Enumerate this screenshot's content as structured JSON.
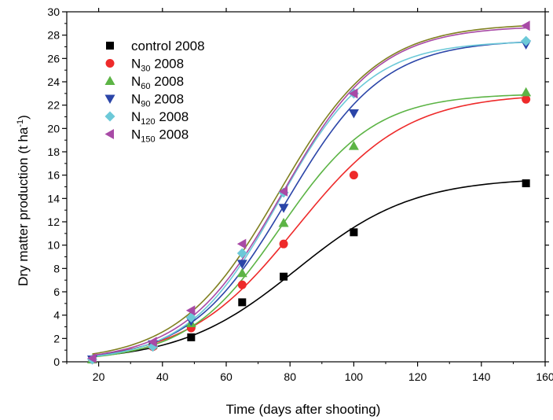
{
  "chart_data": {
    "type": "scatter",
    "xlabel": "Time (days after shooting)",
    "ylabel": "Dry matter production (t ha-1)",
    "ylabel_parts": {
      "main": "Dry matter production (t ha",
      "sup": "-1",
      "close": ")"
    },
    "xlim": [
      10,
      160
    ],
    "ylim": [
      0,
      30
    ],
    "x_ticks": [
      20,
      40,
      60,
      80,
      100,
      120,
      140,
      160
    ],
    "y_ticks": [
      0,
      2,
      4,
      6,
      8,
      10,
      12,
      14,
      16,
      18,
      20,
      22,
      24,
      26,
      28,
      30
    ],
    "grid": false,
    "legend_position": "top-left",
    "x": [
      18,
      37,
      49,
      65,
      78,
      100,
      154
    ],
    "series": [
      {
        "name": "control 2008",
        "label_main": "control 2008",
        "label_sub": "",
        "label_rest": "",
        "marker": "square",
        "color": "#000000",
        "values": [
          0.2,
          1.4,
          2.1,
          5.1,
          7.3,
          11.1,
          15.3
        ],
        "fit": {
          "a": 15.8,
          "b": 0.055,
          "c": 82
        }
      },
      {
        "name": "N30 2008",
        "label_main": "N",
        "label_sub": "30",
        "label_rest": " 2008",
        "marker": "circle",
        "color": "#ee2a2a",
        "values": [
          0.2,
          1.3,
          2.9,
          6.6,
          10.1,
          16.0,
          22.5
        ],
        "fit": {
          "a": 23.0,
          "b": 0.058,
          "c": 82
        }
      },
      {
        "name": "N60 2008",
        "label_main": "N",
        "label_sub": "60",
        "label_rest": " 2008",
        "marker": "triangle-up",
        "color": "#5cb445",
        "values": [
          0.2,
          1.5,
          3.3,
          7.6,
          11.9,
          18.5,
          23.1
        ],
        "fit": {
          "a": 23.0,
          "b": 0.068,
          "c": 77
        }
      },
      {
        "name": "N90 2008",
        "label_main": "N",
        "label_sub": "90",
        "label_rest": " 2008",
        "marker": "triangle-down",
        "color": "#2b45a8",
        "values": [
          0.2,
          1.5,
          3.5,
          8.4,
          13.2,
          21.3,
          27.2
        ],
        "fit": {
          "a": 27.6,
          "b": 0.066,
          "c": 79
        }
      },
      {
        "name": "N120 2008",
        "label_main": "N",
        "label_sub": "120",
        "label_rest": " 2008",
        "marker": "diamond",
        "color": "#6cc9d8",
        "values": [
          0.2,
          1.3,
          3.8,
          9.3,
          14.5,
          23.0,
          27.5
        ],
        "fit": {
          "a": 27.5,
          "b": 0.07,
          "c": 76.5
        }
      },
      {
        "name": "N150 2008",
        "label_main": "N",
        "label_sub": "150",
        "label_rest": " 2008",
        "marker": "triangle-left",
        "color": "#a84aa6",
        "values": [
          0.3,
          1.7,
          4.4,
          10.1,
          14.6,
          23.0,
          28.8
        ],
        "fit": {
          "a": 28.8,
          "b": 0.066,
          "c": 77.5
        }
      }
    ],
    "extra_fit_curve_color": "#808020"
  }
}
